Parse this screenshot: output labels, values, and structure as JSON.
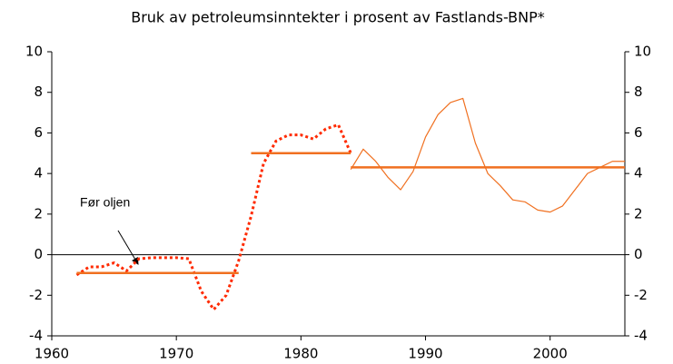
{
  "chart_data": {
    "type": "line",
    "title": "Bruk av petroleumsinntekter i prosent av Fastlands-BNP*",
    "annotation": "Før oljen",
    "xlim": [
      1960,
      2006
    ],
    "xticks": [
      1960,
      1970,
      1980,
      1990,
      2000
    ],
    "ylim": [
      -4,
      10
    ],
    "yticks": [
      -4,
      -2,
      0,
      2,
      4,
      6,
      8,
      10
    ],
    "y2lim": [
      -4,
      10
    ],
    "y2ticks": [
      -4,
      -2,
      0,
      2,
      4,
      6,
      8,
      10
    ],
    "grid": false,
    "series": [
      {
        "color": "#ff2a00",
        "dash": true,
        "width": 3,
        "x": [
          1962,
          1963,
          1964,
          1965,
          1966,
          1967,
          1968,
          1969,
          1970,
          1971,
          1972,
          1973,
          1974,
          1975,
          1976,
          1977,
          1978,
          1979,
          1980,
          1981,
          1982,
          1983,
          1984
        ],
        "values": [
          -1.0,
          -0.6,
          -0.6,
          -0.4,
          -0.8,
          -0.2,
          -0.15,
          -0.15,
          -0.15,
          -0.2,
          -1.8,
          -2.7,
          -2.0,
          -0.3,
          1.9,
          4.5,
          5.6,
          5.9,
          5.9,
          5.7,
          6.2,
          6.4,
          5.0
        ]
      },
      {
        "color": "#f07020",
        "dash": false,
        "width": 1.2,
        "x": [
          1984,
          1985,
          1986,
          1987,
          1988,
          1989,
          1990,
          1991,
          1992,
          1993,
          1994,
          1995,
          1996,
          1997,
          1998,
          1999,
          2000,
          2001,
          2002,
          2003,
          2004,
          2005,
          2006
        ],
        "values": [
          4.2,
          5.2,
          4.6,
          3.8,
          3.2,
          4.1,
          5.8,
          6.9,
          7.5,
          7.7,
          5.5,
          4.0,
          3.4,
          2.7,
          2.6,
          2.2,
          2.1,
          2.4,
          3.2,
          4.0,
          4.3,
          4.6,
          4.6
        ]
      },
      {
        "color": "#f07020",
        "dash": false,
        "width": 2.5,
        "x": [
          1962,
          1975
        ],
        "values": [
          -0.9,
          -0.9
        ]
      },
      {
        "color": "#f07020",
        "dash": false,
        "width": 2.5,
        "x": [
          1976,
          1984
        ],
        "values": [
          5.0,
          5.0
        ]
      },
      {
        "color": "#f07020",
        "dash": false,
        "width": 2.5,
        "x": [
          1984,
          2006
        ],
        "values": [
          4.3,
          4.3
        ]
      }
    ]
  }
}
